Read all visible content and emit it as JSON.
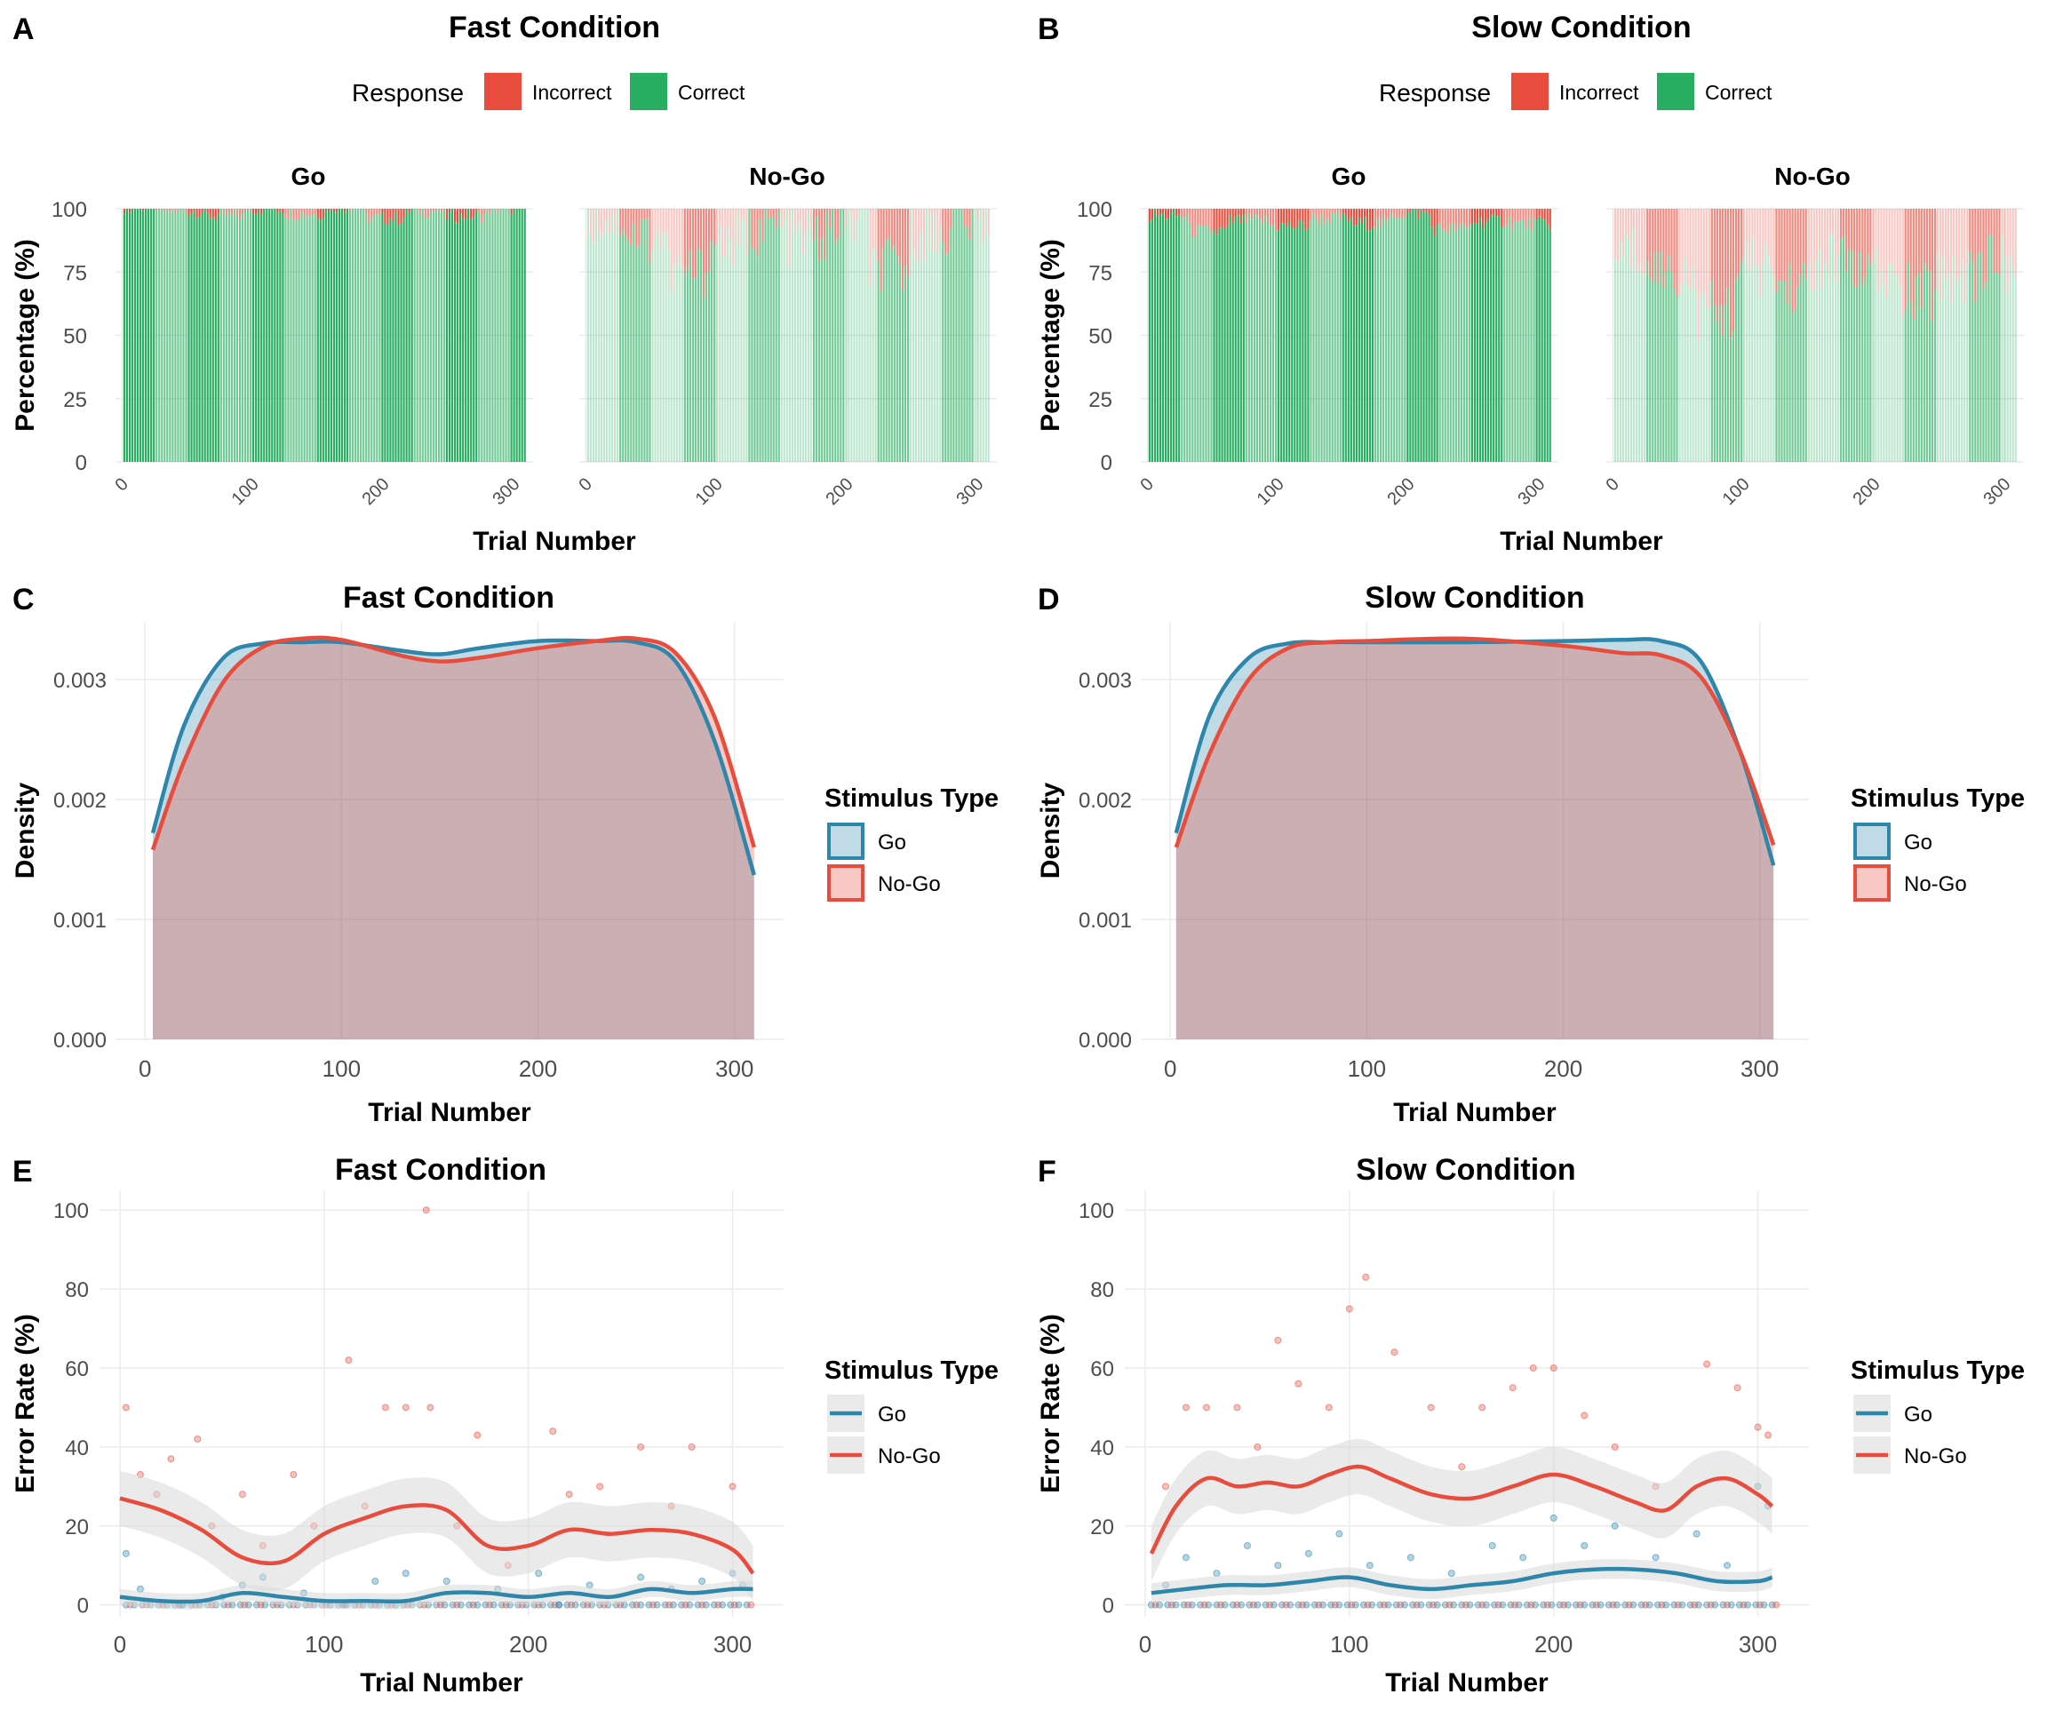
{
  "colors": {
    "incorrect": "#E74C3C",
    "correct": "#27AE60",
    "go": "#2E86AB",
    "nogo": "#E74C3C",
    "grid": "#EBEBEB",
    "ribbon": "#D9D9D9",
    "overlap": "#C9B1B4"
  },
  "chart_data": [
    {
      "panel": "A",
      "type": "bar",
      "stacked": true,
      "title": "Fast Condition",
      "legend": {
        "title": "Response",
        "position": "top",
        "entries": [
          "Incorrect",
          "Correct"
        ]
      },
      "facets": [
        {
          "name": "Go",
          "correct_pct": [
            100,
            98,
            96,
            99,
            97,
            100,
            95,
            98,
            96,
            99
          ]
        },
        {
          "name": "No-Go",
          "correct_pct": [
            92,
            85,
            70,
            82,
            88,
            84,
            90,
            72,
            86,
            91
          ]
        }
      ],
      "xlabel": "Trial Number",
      "ylabel": "Percentage (%)",
      "xticks": [
        0,
        100,
        200,
        300
      ],
      "yticks": [
        0,
        25,
        50,
        75,
        100
      ],
      "xlim": [
        -5,
        315
      ],
      "ylim": [
        0,
        100
      ]
    },
    {
      "panel": "B",
      "type": "bar",
      "stacked": true,
      "title": "Slow Condition",
      "legend": {
        "title": "Response",
        "position": "top",
        "entries": [
          "Incorrect",
          "Correct"
        ]
      },
      "facets": [
        {
          "name": "Go",
          "correct_pct": [
            96,
            90,
            94,
            92,
            95,
            93,
            97,
            91,
            94,
            93
          ]
        },
        {
          "name": "No-Go",
          "correct_pct": [
            78,
            70,
            55,
            72,
            65,
            75,
            68,
            62,
            70,
            74
          ]
        }
      ],
      "xlabel": "Trial Number",
      "ylabel": "Percentage (%)",
      "xticks": [
        0,
        100,
        200,
        300
      ],
      "yticks": [
        0,
        25,
        50,
        75,
        100
      ],
      "xlim": [
        -5,
        315
      ],
      "ylim": [
        0,
        100
      ]
    },
    {
      "panel": "C",
      "type": "area",
      "title": "Fast Condition",
      "xlabel": "Trial Number",
      "ylabel": "Density",
      "legend": {
        "title": "Stimulus Type",
        "position": "right",
        "entries": [
          "Go",
          "No-Go"
        ]
      },
      "x": [
        4,
        20,
        40,
        60,
        80,
        100,
        130,
        150,
        170,
        200,
        230,
        250,
        270,
        290,
        310
      ],
      "series": [
        {
          "name": "Go",
          "values": [
            0.00172,
            0.00262,
            0.00318,
            0.0033,
            0.00331,
            0.00331,
            0.00324,
            0.00321,
            0.00326,
            0.00332,
            0.00332,
            0.00331,
            0.00315,
            0.00248,
            0.00137
          ]
        },
        {
          "name": "No-Go",
          "values": [
            0.00158,
            0.00232,
            0.00298,
            0.00327,
            0.00334,
            0.00333,
            0.0032,
            0.00315,
            0.00318,
            0.00326,
            0.00332,
            0.00334,
            0.00322,
            0.00268,
            0.0016
          ]
        }
      ],
      "xticks": [
        0,
        100,
        200,
        300
      ],
      "yticks": [
        0.0,
        0.001,
        0.002,
        0.003
      ],
      "ytick_labels": [
        "0.000",
        "0.001",
        "0.002",
        "0.003"
      ],
      "xlim": [
        -15,
        325
      ],
      "ylim": [
        0,
        0.00348
      ]
    },
    {
      "panel": "D",
      "type": "area",
      "title": "Slow Condition",
      "xlabel": "Trial Number",
      "ylabel": "Density",
      "legend": {
        "title": "Stimulus Type",
        "position": "right",
        "entries": [
          "Go",
          "No-Go"
        ]
      },
      "x": [
        3,
        20,
        40,
        60,
        80,
        100,
        150,
        200,
        230,
        250,
        270,
        290,
        307
      ],
      "series": [
        {
          "name": "Go",
          "values": [
            0.00172,
            0.0027,
            0.00318,
            0.0033,
            0.00331,
            0.00331,
            0.00331,
            0.00332,
            0.00333,
            0.00332,
            0.00315,
            0.0024,
            0.00145
          ]
        },
        {
          "name": "No-Go",
          "values": [
            0.0016,
            0.00238,
            0.003,
            0.00326,
            0.00331,
            0.00332,
            0.00334,
            0.00328,
            0.00322,
            0.0032,
            0.00302,
            0.0024,
            0.00162
          ]
        }
      ],
      "xticks": [
        0,
        100,
        200,
        300
      ],
      "yticks": [
        0.0,
        0.001,
        0.002,
        0.003
      ],
      "ytick_labels": [
        "0.000",
        "0.001",
        "0.002",
        "0.003"
      ],
      "xlim": [
        -15,
        325
      ],
      "ylim": [
        0,
        0.00348
      ]
    },
    {
      "panel": "E",
      "type": "scatter",
      "title": "Fast Condition",
      "xlabel": "Trial Number",
      "ylabel": "Error Rate (%)",
      "legend": {
        "title": "Stimulus Type",
        "position": "right",
        "entries": [
          "Go",
          "No-Go"
        ]
      },
      "smooth": [
        {
          "name": "Go",
          "x": [
            0,
            20,
            40,
            60,
            80,
            100,
            120,
            140,
            160,
            180,
            200,
            220,
            240,
            260,
            280,
            300,
            310
          ],
          "y": [
            2,
            1,
            1,
            3,
            2,
            1,
            1,
            1,
            3,
            3,
            2,
            3,
            2,
            4,
            3,
            4,
            4
          ],
          "ribbon": 2
        },
        {
          "name": "No-Go",
          "x": [
            0,
            20,
            40,
            60,
            80,
            100,
            120,
            140,
            160,
            180,
            200,
            220,
            240,
            260,
            280,
            300,
            310
          ],
          "y": [
            27,
            24,
            19,
            12,
            11,
            18,
            22,
            25,
            24,
            15,
            15,
            19,
            18,
            19,
            18,
            14,
            8
          ],
          "ribbon": 7
        }
      ],
      "points": {
        "Go": [
          [
            3,
            13
          ],
          [
            10,
            4
          ],
          [
            30,
            0
          ],
          [
            50,
            2
          ],
          [
            60,
            5
          ],
          [
            70,
            7
          ],
          [
            90,
            3
          ],
          [
            110,
            0
          ],
          [
            125,
            6
          ],
          [
            140,
            8
          ],
          [
            160,
            6
          ],
          [
            185,
            4
          ],
          [
            205,
            8
          ],
          [
            215,
            0
          ],
          [
            230,
            5
          ],
          [
            255,
            7
          ],
          [
            270,
            4
          ],
          [
            285,
            6
          ],
          [
            300,
            8
          ],
          [
            305,
            5
          ]
        ],
        "No-Go": [
          [
            3,
            50
          ],
          [
            10,
            33
          ],
          [
            18,
            28
          ],
          [
            25,
            37
          ],
          [
            38,
            42
          ],
          [
            45,
            20
          ],
          [
            60,
            28
          ],
          [
            70,
            15
          ],
          [
            85,
            33
          ],
          [
            95,
            20
          ],
          [
            112,
            62
          ],
          [
            120,
            25
          ],
          [
            130,
            50
          ],
          [
            140,
            50
          ],
          [
            150,
            100
          ],
          [
            152,
            50
          ],
          [
            165,
            20
          ],
          [
            175,
            43
          ],
          [
            190,
            10
          ],
          [
            212,
            44
          ],
          [
            220,
            28
          ],
          [
            235,
            30
          ],
          [
            255,
            40
          ],
          [
            270,
            25
          ],
          [
            280,
            40
          ],
          [
            300,
            30
          ]
        ]
      },
      "xticks": [
        0,
        100,
        200,
        300
      ],
      "yticks": [
        0,
        20,
        40,
        60,
        80,
        100
      ],
      "xlim": [
        -10,
        325
      ],
      "ylim": [
        -3,
        105
      ]
    },
    {
      "panel": "F",
      "type": "scatter",
      "title": "Slow Condition",
      "xlabel": "Trial Number",
      "ylabel": "Error Rate (%)",
      "legend": {
        "title": "Stimulus Type",
        "position": "right",
        "entries": [
          "Go",
          "No-Go"
        ]
      },
      "smooth": [
        {
          "name": "Go",
          "x": [
            3,
            20,
            40,
            60,
            80,
            100,
            120,
            140,
            160,
            180,
            200,
            220,
            240,
            260,
            280,
            300,
            307
          ],
          "y": [
            3,
            4,
            5,
            5,
            6,
            7,
            5,
            4,
            5,
            6,
            8,
            9,
            9,
            8,
            6,
            6,
            7
          ],
          "ribbon": 2.5
        },
        {
          "name": "No-Go",
          "x": [
            3,
            15,
            30,
            45,
            60,
            75,
            90,
            105,
            120,
            140,
            160,
            180,
            200,
            220,
            240,
            255,
            270,
            285,
            300,
            307
          ],
          "y": [
            13,
            25,
            32,
            30,
            31,
            30,
            33,
            35,
            32,
            28,
            27,
            30,
            33,
            30,
            26,
            24,
            30,
            32,
            28,
            25
          ],
          "ribbon": 7
        }
      ],
      "points": {
        "Go": [
          [
            10,
            5
          ],
          [
            20,
            12
          ],
          [
            35,
            8
          ],
          [
            50,
            15
          ],
          [
            65,
            10
          ],
          [
            80,
            13
          ],
          [
            95,
            18
          ],
          [
            110,
            10
          ],
          [
            130,
            12
          ],
          [
            150,
            8
          ],
          [
            170,
            15
          ],
          [
            185,
            12
          ],
          [
            200,
            22
          ],
          [
            215,
            15
          ],
          [
            230,
            20
          ],
          [
            250,
            12
          ],
          [
            270,
            18
          ],
          [
            285,
            10
          ],
          [
            300,
            30
          ],
          [
            305,
            25
          ]
        ],
        "No-Go": [
          [
            10,
            30
          ],
          [
            20,
            50
          ],
          [
            30,
            50
          ],
          [
            45,
            50
          ],
          [
            55,
            40
          ],
          [
            65,
            67
          ],
          [
            75,
            56
          ],
          [
            90,
            50
          ],
          [
            100,
            75
          ],
          [
            108,
            83
          ],
          [
            122,
            64
          ],
          [
            140,
            50
          ],
          [
            155,
            35
          ],
          [
            165,
            50
          ],
          [
            180,
            55
          ],
          [
            190,
            60
          ],
          [
            200,
            60
          ],
          [
            215,
            48
          ],
          [
            230,
            40
          ],
          [
            250,
            30
          ],
          [
            275,
            61
          ],
          [
            290,
            55
          ],
          [
            300,
            45
          ],
          [
            305,
            43
          ]
        ]
      },
      "xticks": [
        0,
        100,
        200,
        300
      ],
      "yticks": [
        0,
        20,
        40,
        60,
        80,
        100
      ],
      "xlim": [
        -10,
        325
      ],
      "ylim": [
        -3,
        105
      ]
    }
  ]
}
